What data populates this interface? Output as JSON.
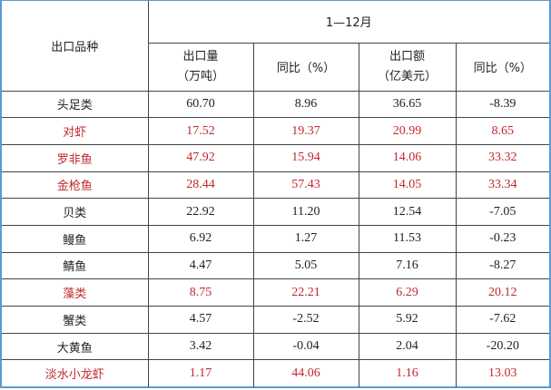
{
  "header": {
    "category_label": "出口品种",
    "period": "1—12月",
    "columns": [
      {
        "line1": "出口量",
        "line2": "（万吨）"
      },
      {
        "line1": "同比（%）",
        "line2": ""
      },
      {
        "line1": "出口额",
        "line2": "（亿美元）"
      },
      {
        "line1": "同比（%）",
        "line2": ""
      }
    ]
  },
  "colors": {
    "highlight": "#c0282d",
    "normal": "#222222",
    "border": "#5b9bd5"
  },
  "rows": [
    {
      "name": "头足类",
      "volume": "60.70",
      "volume_yoy": "8.96",
      "value": "36.65",
      "value_yoy": "-8.39",
      "highlight": false
    },
    {
      "name": "对虾",
      "volume": "17.52",
      "volume_yoy": "19.37",
      "value": "20.99",
      "value_yoy": "8.65",
      "highlight": true
    },
    {
      "name": "罗非鱼",
      "volume": "47.92",
      "volume_yoy": "15.94",
      "value": "14.06",
      "value_yoy": "33.32",
      "highlight": true
    },
    {
      "name": "金枪鱼",
      "volume": "28.44",
      "volume_yoy": "57.43",
      "value": "14.05",
      "value_yoy": "33.34",
      "highlight": true
    },
    {
      "name": "贝类",
      "volume": "22.92",
      "volume_yoy": "11.20",
      "value": "12.54",
      "value_yoy": "-7.05",
      "highlight": false
    },
    {
      "name": "鳗鱼",
      "volume": "6.92",
      "volume_yoy": "1.27",
      "value": "11.53",
      "value_yoy": "-0.23",
      "highlight": false
    },
    {
      "name": "鲭鱼",
      "volume": "4.47",
      "volume_yoy": "5.05",
      "value": "7.16",
      "value_yoy": "-8.27",
      "highlight": false
    },
    {
      "name": "藻类",
      "volume": "8.75",
      "volume_yoy": "22.21",
      "value": "6.29",
      "value_yoy": "20.12",
      "highlight": true
    },
    {
      "name": "蟹类",
      "volume": "4.57",
      "volume_yoy": "-2.52",
      "value": "5.92",
      "value_yoy": "-7.62",
      "highlight": false
    },
    {
      "name": "大黄鱼",
      "volume": "3.42",
      "volume_yoy": "-0.04",
      "value": "2.04",
      "value_yoy": "-20.20",
      "highlight": false
    },
    {
      "name": "淡水小龙虾",
      "volume": "1.17",
      "volume_yoy": "44.06",
      "value": "1.16",
      "value_yoy": "13.03",
      "highlight": true
    }
  ]
}
